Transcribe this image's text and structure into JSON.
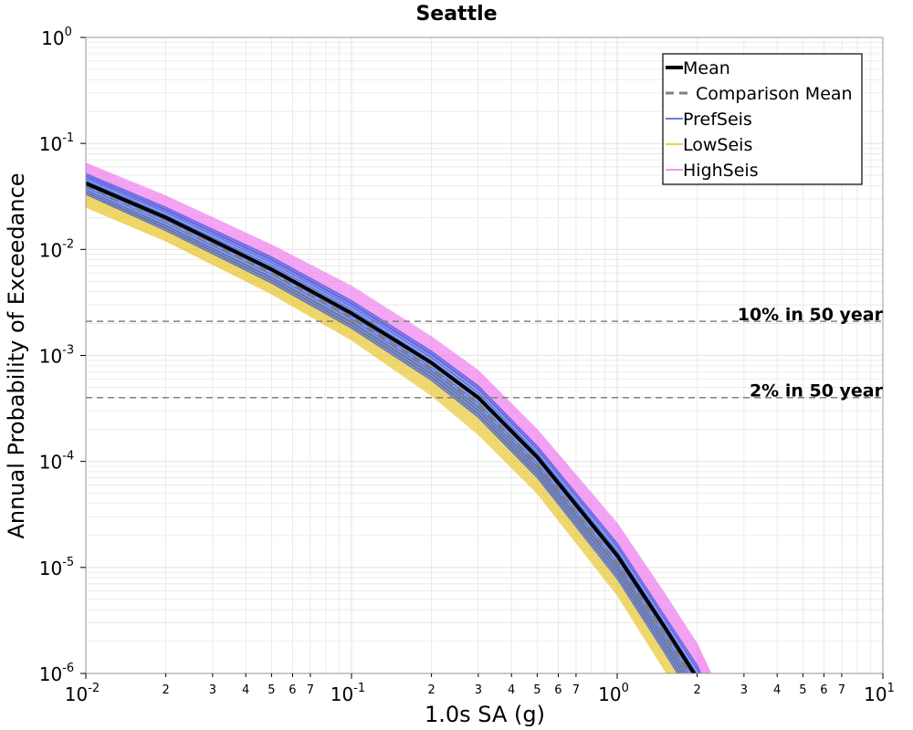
{
  "chart_data": {
    "type": "line",
    "title": "Seattle",
    "xlabel": "1.0s SA (g)",
    "ylabel": "Annual Probability of Exceedance",
    "xscale": "log",
    "yscale": "log",
    "xlim": [
      0.01,
      10
    ],
    "ylim": [
      1e-06,
      1
    ],
    "grid": true,
    "legend_position": "top-right",
    "x_major_ticks": [
      {
        "base": "10",
        "exp": "-2",
        "value": 0.01
      },
      {
        "base": "10",
        "exp": "-1",
        "value": 0.1
      },
      {
        "base": "10",
        "exp": "0",
        "value": 1
      },
      {
        "base": "10",
        "exp": "1",
        "value": 10
      }
    ],
    "y_major_ticks": [
      {
        "base": "10",
        "exp": "0",
        "value": 1
      },
      {
        "base": "10",
        "exp": "-1",
        "value": 0.1
      },
      {
        "base": "10",
        "exp": "-2",
        "value": 0.01
      },
      {
        "base": "10",
        "exp": "-3",
        "value": 0.001
      },
      {
        "base": "10",
        "exp": "-4",
        "value": 0.0001
      },
      {
        "base": "10",
        "exp": "-5",
        "value": 1e-05
      },
      {
        "base": "10",
        "exp": "-6",
        "value": 1e-06
      }
    ],
    "x_minor_tick_labels": [
      "2",
      "3",
      "4",
      "5",
      "6",
      "7"
    ],
    "x": [
      0.01,
      0.02,
      0.05,
      0.1,
      0.2,
      0.3,
      0.5,
      1.0,
      1.5,
      2.0,
      2.3
    ],
    "series": [
      {
        "name": "Mean",
        "color": "#000000",
        "style": "solid",
        "values": [
          0.042,
          0.02,
          0.0065,
          0.0025,
          0.00085,
          0.0004,
          0.00011,
          1.3e-05,
          2.8e-06,
          9e-07,
          4e-07
        ]
      },
      {
        "name": "Comparison Mean",
        "color": "#808080",
        "style": "dashed",
        "values": [
          0.04,
          0.019,
          0.006,
          0.0023,
          0.00076,
          0.00035,
          9.5e-05,
          1.1e-05,
          2.4e-06,
          8e-07,
          3.5e-07
        ]
      },
      {
        "name": "PrefSeis",
        "color": "#3355dd",
        "style": "band",
        "lower": [
          0.033,
          0.015,
          0.0048,
          0.0018,
          0.00058,
          0.00026,
          7e-05,
          7.8e-06,
          1.6e-06,
          5e-07,
          2.5e-07
        ],
        "upper": [
          0.052,
          0.025,
          0.0085,
          0.0033,
          0.0011,
          0.00052,
          0.00014,
          1.7e-05,
          3.6e-06,
          1.2e-06,
          5.5e-07
        ]
      },
      {
        "name": "LowSeis",
        "color": "#e6c01a",
        "style": "band",
        "lower": [
          0.025,
          0.012,
          0.0038,
          0.0014,
          0.00042,
          0.00018,
          5e-05,
          5.5e-06,
          1.1e-06,
          3.5e-07,
          1.8e-07
        ],
        "upper": [
          0.036,
          0.017,
          0.0055,
          0.0021,
          0.0007,
          0.00032,
          9e-05,
          1.05e-05,
          2.2e-06,
          7e-07,
          3.2e-07
        ]
      },
      {
        "name": "HighSeis",
        "color": "#ee77ee",
        "style": "band",
        "lower": [
          0.048,
          0.023,
          0.0078,
          0.003,
          0.001,
          0.00048,
          0.00013,
          1.6e-05,
          3.4e-06,
          1.1e-06,
          5e-07
        ],
        "upper": [
          0.065,
          0.032,
          0.011,
          0.0045,
          0.0015,
          0.00072,
          0.0002,
          2.6e-05,
          5.8e-06,
          1.9e-06,
          9e-07
        ]
      }
    ],
    "reference_lines": [
      {
        "label": "10% in 50 year",
        "y": 0.0021,
        "color": "#808080",
        "style": "dashed"
      },
      {
        "label": "2% in 50 year",
        "y": 0.0004,
        "color": "#808080",
        "style": "dashed"
      }
    ],
    "colors": {
      "grid": "#e6e6e6",
      "axis": "#999999",
      "legend_border": "#000000"
    }
  }
}
